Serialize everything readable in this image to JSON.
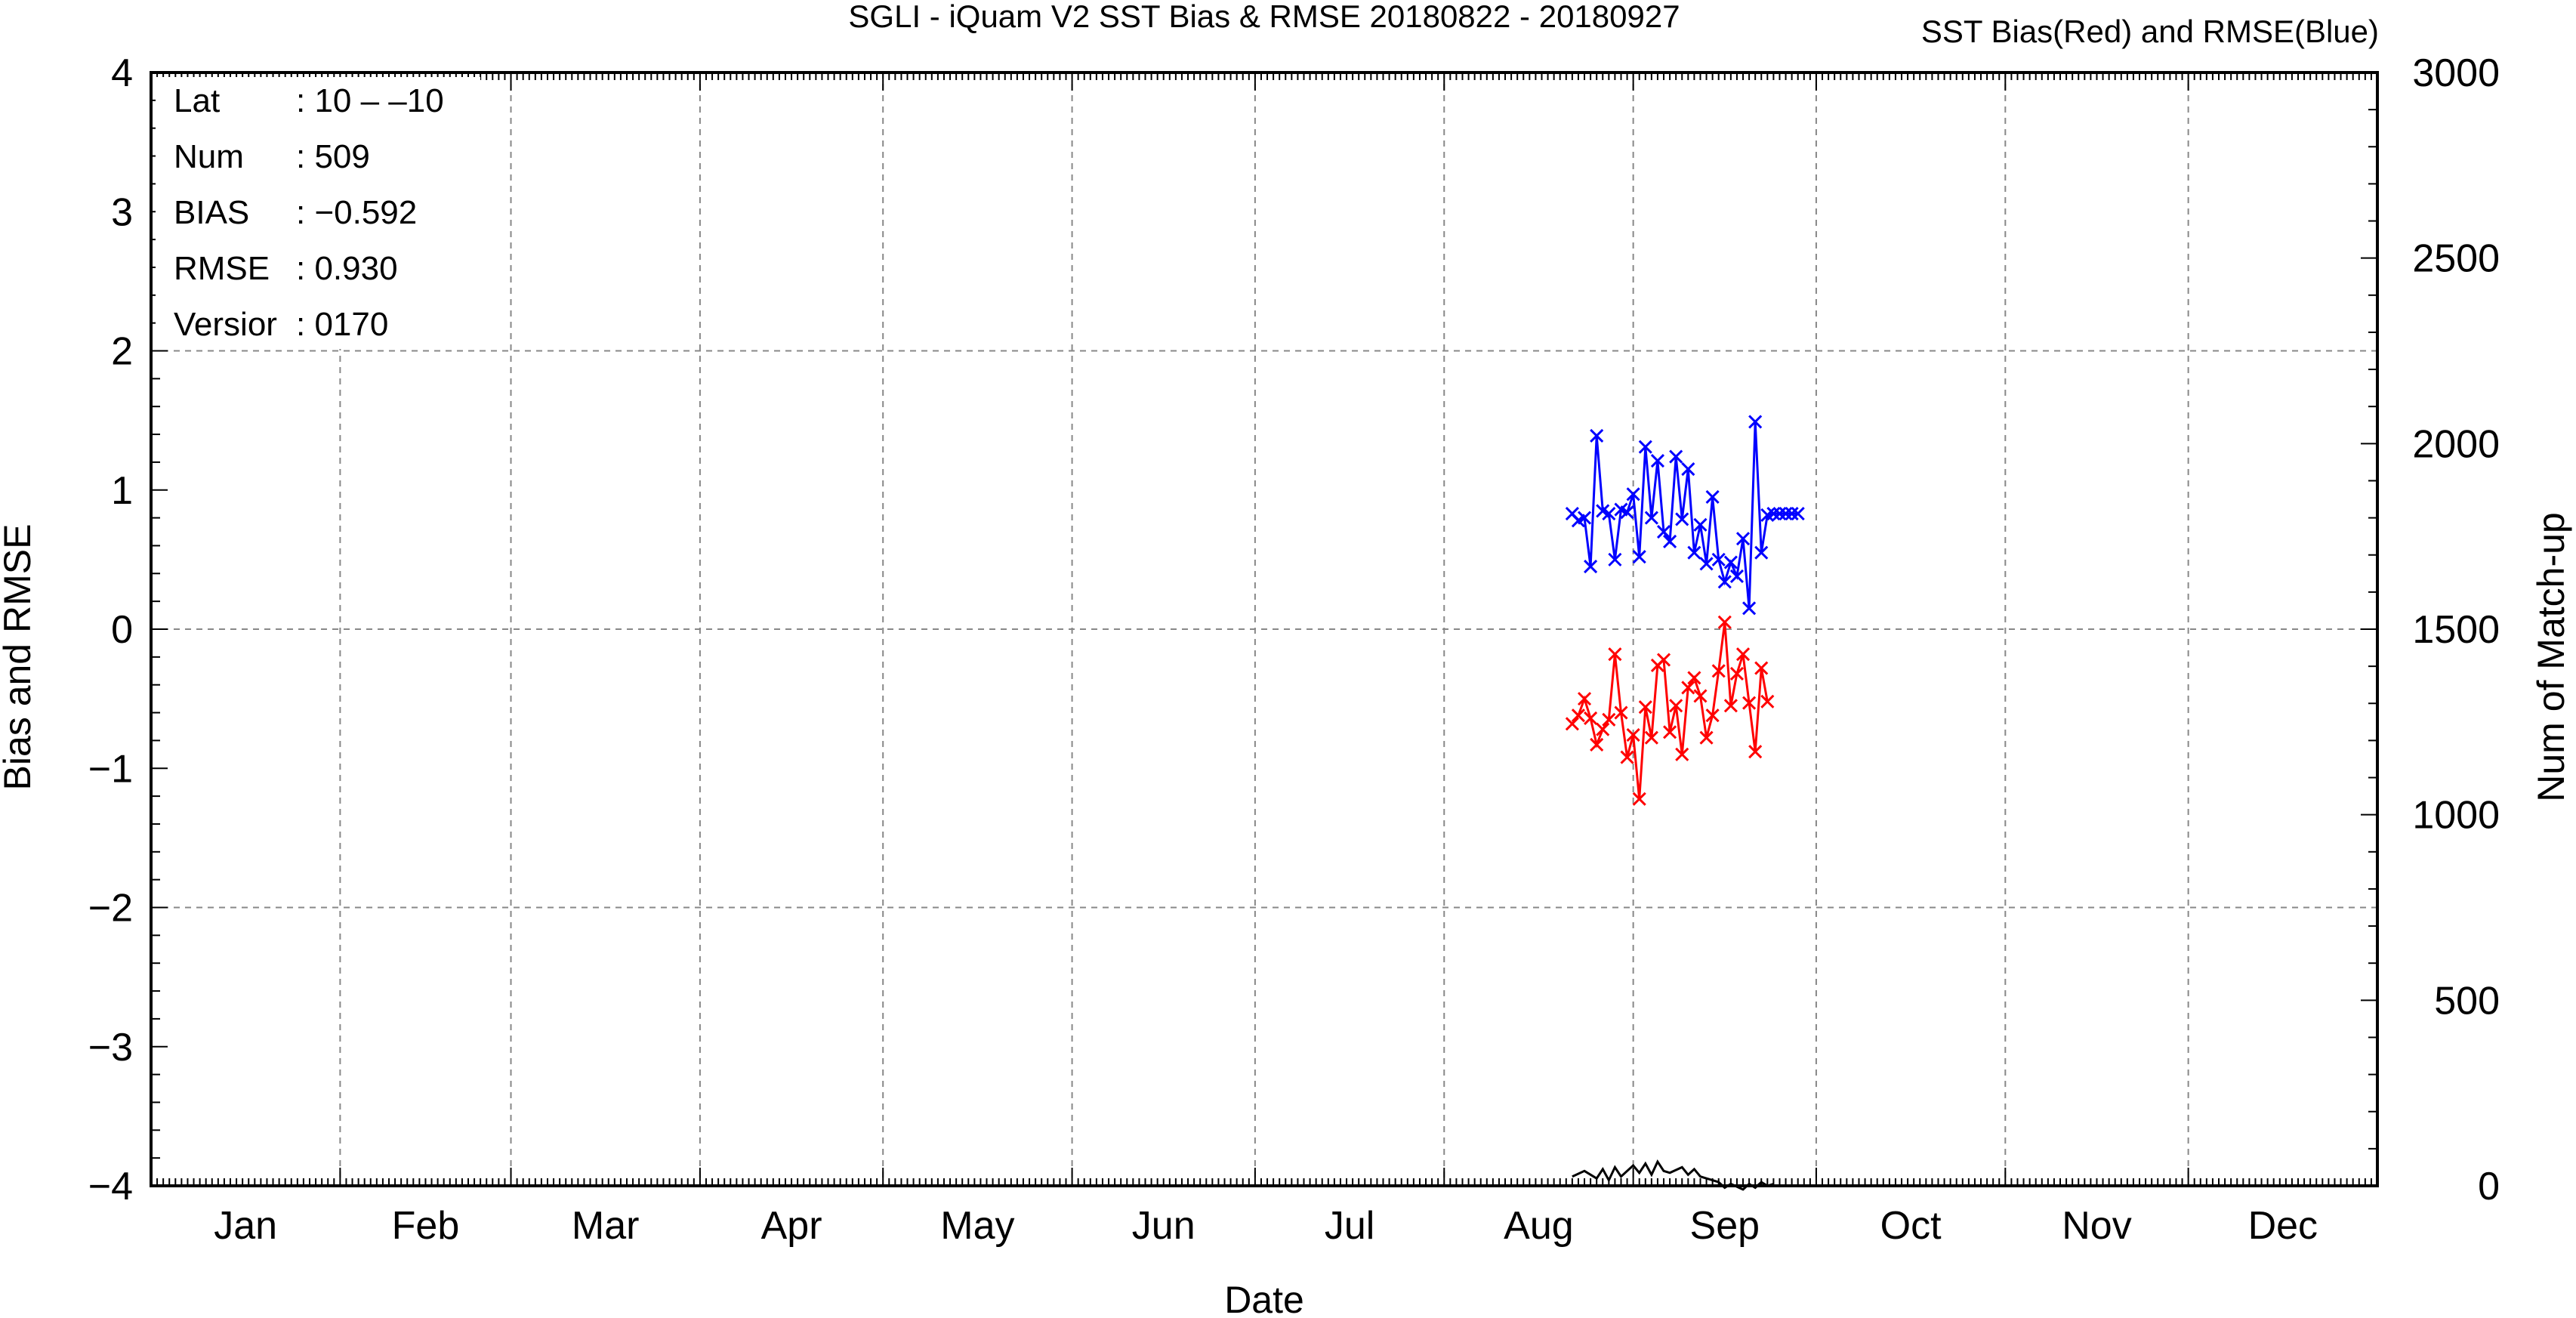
{
  "chart_data": {
    "type": "line",
    "title": "SGLI - iQuam V2 SST Bias & RMSE 20180822 - 20180927",
    "legend_title": "SST Bias(Red) and RMSE(Blue)",
    "xlabel": "Date",
    "ylabel": "Bias and RMSE",
    "y2label": "Num of Match-up",
    "months": [
      "Jan",
      "Feb",
      "Mar",
      "Apr",
      "May",
      "Jun",
      "Jul",
      "Aug",
      "Sep",
      "Oct",
      "Nov",
      "Dec"
    ],
    "xlim": [
      0,
      365
    ],
    "ylim": [
      -4,
      4
    ],
    "y2lim": [
      0,
      3000
    ],
    "yticks": [
      "4",
      "3",
      "2",
      "1",
      "0",
      "−1",
      "−2",
      "−3",
      "−4"
    ],
    "y2ticks": [
      "3000",
      "2500",
      "2000",
      "1500",
      "1000",
      "500",
      "0"
    ],
    "grid": true,
    "stats": [
      {
        "key": "Lat",
        "value": ": 10 – –10"
      },
      {
        "key": "Num",
        "value": ": 509"
      },
      {
        "key": "BIAS",
        "value": ": −0.592"
      },
      {
        "key": "RMSE",
        "value": ": 0.930"
      },
      {
        "key": "Versior",
        "value": ": 0170"
      }
    ],
    "series": [
      {
        "color": "#0000ff",
        "marker": "x",
        "x": [
          233,
          234,
          235,
          236,
          237,
          238,
          239,
          240,
          241,
          242,
          243,
          244,
          245,
          246,
          247,
          248,
          249,
          250,
          251,
          252,
          253,
          254,
          255,
          256,
          257,
          258,
          259,
          260,
          261,
          262,
          263,
          264,
          265,
          266,
          267,
          268,
          269,
          270
        ],
        "values": [
          0.83,
          0.78,
          0.8,
          0.45,
          1.39,
          0.85,
          0.83,
          0.5,
          0.86,
          0.84,
          0.97,
          0.52,
          1.31,
          0.8,
          1.21,
          0.7,
          0.63,
          1.24,
          0.79,
          1.15,
          0.55,
          0.75,
          0.47,
          0.95,
          0.5,
          0.34,
          0.48,
          0.38,
          0.65,
          0.15,
          1.49,
          0.55,
          0.82,
          0.83,
          0.83,
          0.83,
          0.83,
          0.83
        ]
      },
      {
        "color": "#ff0000",
        "marker": "x",
        "x": [
          233,
          234,
          235,
          236,
          237,
          238,
          239,
          240,
          241,
          242,
          243,
          244,
          245,
          246,
          247,
          248,
          249,
          250,
          251,
          252,
          253,
          254,
          255,
          256,
          257,
          258,
          259,
          260,
          261,
          262,
          263,
          264,
          265
        ],
        "values": [
          -0.68,
          -0.62,
          -0.5,
          -0.64,
          -0.83,
          -0.72,
          -0.65,
          -0.18,
          -0.6,
          -0.92,
          -0.76,
          -1.22,
          -0.56,
          -0.78,
          -0.26,
          -0.22,
          -0.74,
          -0.55,
          -0.9,
          -0.42,
          -0.35,
          -0.48,
          -0.78,
          -0.62,
          -0.3,
          0.05,
          -0.55,
          -0.32,
          -0.18,
          -0.53,
          -0.88,
          -0.28,
          -0.52
        ]
      },
      {
        "color": "#000000",
        "marker": "none",
        "axis": "right",
        "x": [
          233,
          235,
          237,
          238,
          239,
          240,
          241,
          243,
          244,
          245,
          246,
          247,
          248,
          249,
          251,
          252,
          253,
          254,
          255,
          256,
          257,
          258,
          259,
          261,
          262,
          263,
          264,
          265,
          266
        ],
        "values": [
          25,
          40,
          20,
          45,
          15,
          50,
          25,
          55,
          35,
          60,
          30,
          65,
          40,
          35,
          50,
          30,
          45,
          25,
          20,
          15,
          10,
          -5,
          5,
          -10,
          5,
          -5,
          10,
          0,
          5
        ]
      }
    ]
  }
}
